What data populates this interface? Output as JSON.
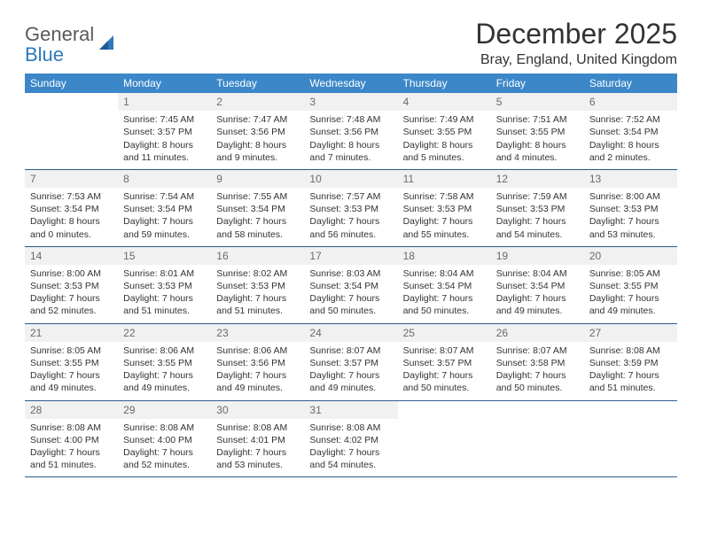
{
  "logo": {
    "line1": "General",
    "line2": "Blue"
  },
  "title": "December 2025",
  "location": "Bray, England, United Kingdom",
  "colors": {
    "header_bg": "#3b87c8",
    "header_text": "#ffffff",
    "day_num_bg": "#f1f1f1",
    "day_num_text": "#6a6a6a",
    "body_text": "#333333",
    "rule": "#2f5b88",
    "logo_gray": "#5a5a5a",
    "logo_blue": "#2f78bd"
  },
  "day_headers": [
    "Sunday",
    "Monday",
    "Tuesday",
    "Wednesday",
    "Thursday",
    "Friday",
    "Saturday"
  ],
  "weeks": [
    [
      {
        "empty": true
      },
      {
        "num": "1",
        "sunrise": "Sunrise: 7:45 AM",
        "sunset": "Sunset: 3:57 PM",
        "dl1": "Daylight: 8 hours",
        "dl2": "and 11 minutes."
      },
      {
        "num": "2",
        "sunrise": "Sunrise: 7:47 AM",
        "sunset": "Sunset: 3:56 PM",
        "dl1": "Daylight: 8 hours",
        "dl2": "and 9 minutes."
      },
      {
        "num": "3",
        "sunrise": "Sunrise: 7:48 AM",
        "sunset": "Sunset: 3:56 PM",
        "dl1": "Daylight: 8 hours",
        "dl2": "and 7 minutes."
      },
      {
        "num": "4",
        "sunrise": "Sunrise: 7:49 AM",
        "sunset": "Sunset: 3:55 PM",
        "dl1": "Daylight: 8 hours",
        "dl2": "and 5 minutes."
      },
      {
        "num": "5",
        "sunrise": "Sunrise: 7:51 AM",
        "sunset": "Sunset: 3:55 PM",
        "dl1": "Daylight: 8 hours",
        "dl2": "and 4 minutes."
      },
      {
        "num": "6",
        "sunrise": "Sunrise: 7:52 AM",
        "sunset": "Sunset: 3:54 PM",
        "dl1": "Daylight: 8 hours",
        "dl2": "and 2 minutes."
      }
    ],
    [
      {
        "num": "7",
        "sunrise": "Sunrise: 7:53 AM",
        "sunset": "Sunset: 3:54 PM",
        "dl1": "Daylight: 8 hours",
        "dl2": "and 0 minutes."
      },
      {
        "num": "8",
        "sunrise": "Sunrise: 7:54 AM",
        "sunset": "Sunset: 3:54 PM",
        "dl1": "Daylight: 7 hours",
        "dl2": "and 59 minutes."
      },
      {
        "num": "9",
        "sunrise": "Sunrise: 7:55 AM",
        "sunset": "Sunset: 3:54 PM",
        "dl1": "Daylight: 7 hours",
        "dl2": "and 58 minutes."
      },
      {
        "num": "10",
        "sunrise": "Sunrise: 7:57 AM",
        "sunset": "Sunset: 3:53 PM",
        "dl1": "Daylight: 7 hours",
        "dl2": "and 56 minutes."
      },
      {
        "num": "11",
        "sunrise": "Sunrise: 7:58 AM",
        "sunset": "Sunset: 3:53 PM",
        "dl1": "Daylight: 7 hours",
        "dl2": "and 55 minutes."
      },
      {
        "num": "12",
        "sunrise": "Sunrise: 7:59 AM",
        "sunset": "Sunset: 3:53 PM",
        "dl1": "Daylight: 7 hours",
        "dl2": "and 54 minutes."
      },
      {
        "num": "13",
        "sunrise": "Sunrise: 8:00 AM",
        "sunset": "Sunset: 3:53 PM",
        "dl1": "Daylight: 7 hours",
        "dl2": "and 53 minutes."
      }
    ],
    [
      {
        "num": "14",
        "sunrise": "Sunrise: 8:00 AM",
        "sunset": "Sunset: 3:53 PM",
        "dl1": "Daylight: 7 hours",
        "dl2": "and 52 minutes."
      },
      {
        "num": "15",
        "sunrise": "Sunrise: 8:01 AM",
        "sunset": "Sunset: 3:53 PM",
        "dl1": "Daylight: 7 hours",
        "dl2": "and 51 minutes."
      },
      {
        "num": "16",
        "sunrise": "Sunrise: 8:02 AM",
        "sunset": "Sunset: 3:53 PM",
        "dl1": "Daylight: 7 hours",
        "dl2": "and 51 minutes."
      },
      {
        "num": "17",
        "sunrise": "Sunrise: 8:03 AM",
        "sunset": "Sunset: 3:54 PM",
        "dl1": "Daylight: 7 hours",
        "dl2": "and 50 minutes."
      },
      {
        "num": "18",
        "sunrise": "Sunrise: 8:04 AM",
        "sunset": "Sunset: 3:54 PM",
        "dl1": "Daylight: 7 hours",
        "dl2": "and 50 minutes."
      },
      {
        "num": "19",
        "sunrise": "Sunrise: 8:04 AM",
        "sunset": "Sunset: 3:54 PM",
        "dl1": "Daylight: 7 hours",
        "dl2": "and 49 minutes."
      },
      {
        "num": "20",
        "sunrise": "Sunrise: 8:05 AM",
        "sunset": "Sunset: 3:55 PM",
        "dl1": "Daylight: 7 hours",
        "dl2": "and 49 minutes."
      }
    ],
    [
      {
        "num": "21",
        "sunrise": "Sunrise: 8:05 AM",
        "sunset": "Sunset: 3:55 PM",
        "dl1": "Daylight: 7 hours",
        "dl2": "and 49 minutes."
      },
      {
        "num": "22",
        "sunrise": "Sunrise: 8:06 AM",
        "sunset": "Sunset: 3:55 PM",
        "dl1": "Daylight: 7 hours",
        "dl2": "and 49 minutes."
      },
      {
        "num": "23",
        "sunrise": "Sunrise: 8:06 AM",
        "sunset": "Sunset: 3:56 PM",
        "dl1": "Daylight: 7 hours",
        "dl2": "and 49 minutes."
      },
      {
        "num": "24",
        "sunrise": "Sunrise: 8:07 AM",
        "sunset": "Sunset: 3:57 PM",
        "dl1": "Daylight: 7 hours",
        "dl2": "and 49 minutes."
      },
      {
        "num": "25",
        "sunrise": "Sunrise: 8:07 AM",
        "sunset": "Sunset: 3:57 PM",
        "dl1": "Daylight: 7 hours",
        "dl2": "and 50 minutes."
      },
      {
        "num": "26",
        "sunrise": "Sunrise: 8:07 AM",
        "sunset": "Sunset: 3:58 PM",
        "dl1": "Daylight: 7 hours",
        "dl2": "and 50 minutes."
      },
      {
        "num": "27",
        "sunrise": "Sunrise: 8:08 AM",
        "sunset": "Sunset: 3:59 PM",
        "dl1": "Daylight: 7 hours",
        "dl2": "and 51 minutes."
      }
    ],
    [
      {
        "num": "28",
        "sunrise": "Sunrise: 8:08 AM",
        "sunset": "Sunset: 4:00 PM",
        "dl1": "Daylight: 7 hours",
        "dl2": "and 51 minutes."
      },
      {
        "num": "29",
        "sunrise": "Sunrise: 8:08 AM",
        "sunset": "Sunset: 4:00 PM",
        "dl1": "Daylight: 7 hours",
        "dl2": "and 52 minutes."
      },
      {
        "num": "30",
        "sunrise": "Sunrise: 8:08 AM",
        "sunset": "Sunset: 4:01 PM",
        "dl1": "Daylight: 7 hours",
        "dl2": "and 53 minutes."
      },
      {
        "num": "31",
        "sunrise": "Sunrise: 8:08 AM",
        "sunset": "Sunset: 4:02 PM",
        "dl1": "Daylight: 7 hours",
        "dl2": "and 54 minutes."
      },
      {
        "empty": true
      },
      {
        "empty": true
      },
      {
        "empty": true
      }
    ]
  ]
}
